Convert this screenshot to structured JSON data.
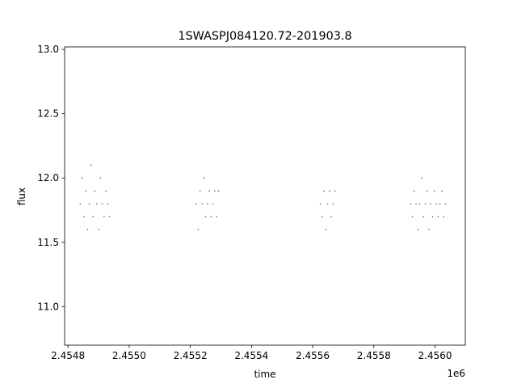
{
  "chart_data": {
    "type": "scatter",
    "title": "1SWASPJ084120.72-201903.8",
    "xlabel": "time",
    "ylabel": "flux",
    "x_offset_label": "1e6",
    "xlim": [
      2454789,
      2456099
    ],
    "ylim": [
      10.7,
      13.02
    ],
    "x_ticks": [
      2454800,
      2455000,
      2455200,
      2455400,
      2455600,
      2455800,
      2456000
    ],
    "x_tick_labels": [
      "2.4548",
      "2.4550",
      "2.4552",
      "2.4554",
      "2.4556",
      "2.4558",
      "2.4560"
    ],
    "y_ticks": [
      11.0,
      11.5,
      12.0,
      12.5,
      13.0
    ],
    "y_tick_labels": [
      "11.0",
      "11.5",
      "12.0",
      "12.5",
      "13.0"
    ],
    "grid": false,
    "marker_color": "#1f77b4",
    "series": [
      {
        "name": "",
        "x": [
          2454840.0,
          2454846.0,
          2454852.0,
          2454858.0,
          2454864.0,
          2454870.0,
          2454876.0,
          2454882.0,
          2454888.0,
          2454894.0,
          2454900.0,
          2454906.0,
          2454912.0,
          2454918.0,
          2454924.0,
          2454930.0,
          2454936.0,
          2455220.0,
          2455226.0,
          2455232.0,
          2455238.0,
          2455244.0,
          2455250.0,
          2455256.0,
          2455262.0,
          2455268.0,
          2455274.0,
          2455280.0,
          2455286.0,
          2455292.0,
          2455625.0,
          2455631.0,
          2455637.0,
          2455643.0,
          2455649.0,
          2455655.0,
          2455661.0,
          2455667.0,
          2455673.0,
          2455920.0,
          2455926.0,
          2455932.0,
          2455938.0,
          2455944.0,
          2455950.0,
          2455956.0,
          2455962.0,
          2455968.0,
          2455974.0,
          2455980.0,
          2455986.0,
          2455992.0,
          2455998.0,
          2456004.0,
          2456010.0,
          2456016.0,
          2456022.0,
          2456028.0,
          2456034.0
        ],
        "y": [
          11.8,
          12.0,
          11.7,
          11.9,
          11.6,
          11.8,
          12.1,
          11.7,
          11.9,
          11.8,
          11.6,
          12.0,
          11.8,
          11.7,
          11.9,
          11.8,
          11.7,
          11.8,
          11.6,
          11.9,
          11.8,
          12.0,
          11.7,
          11.8,
          11.9,
          11.7,
          11.8,
          11.9,
          11.7,
          11.9,
          11.8,
          11.7,
          11.9,
          11.6,
          11.8,
          11.9,
          11.7,
          11.8,
          11.9,
          11.8,
          11.7,
          11.9,
          11.8,
          11.6,
          11.8,
          12.0,
          11.7,
          11.8,
          11.9,
          11.6,
          11.8,
          11.7,
          11.9,
          11.8,
          11.7,
          11.8,
          11.9,
          11.7,
          11.8
        ]
      }
    ]
  }
}
